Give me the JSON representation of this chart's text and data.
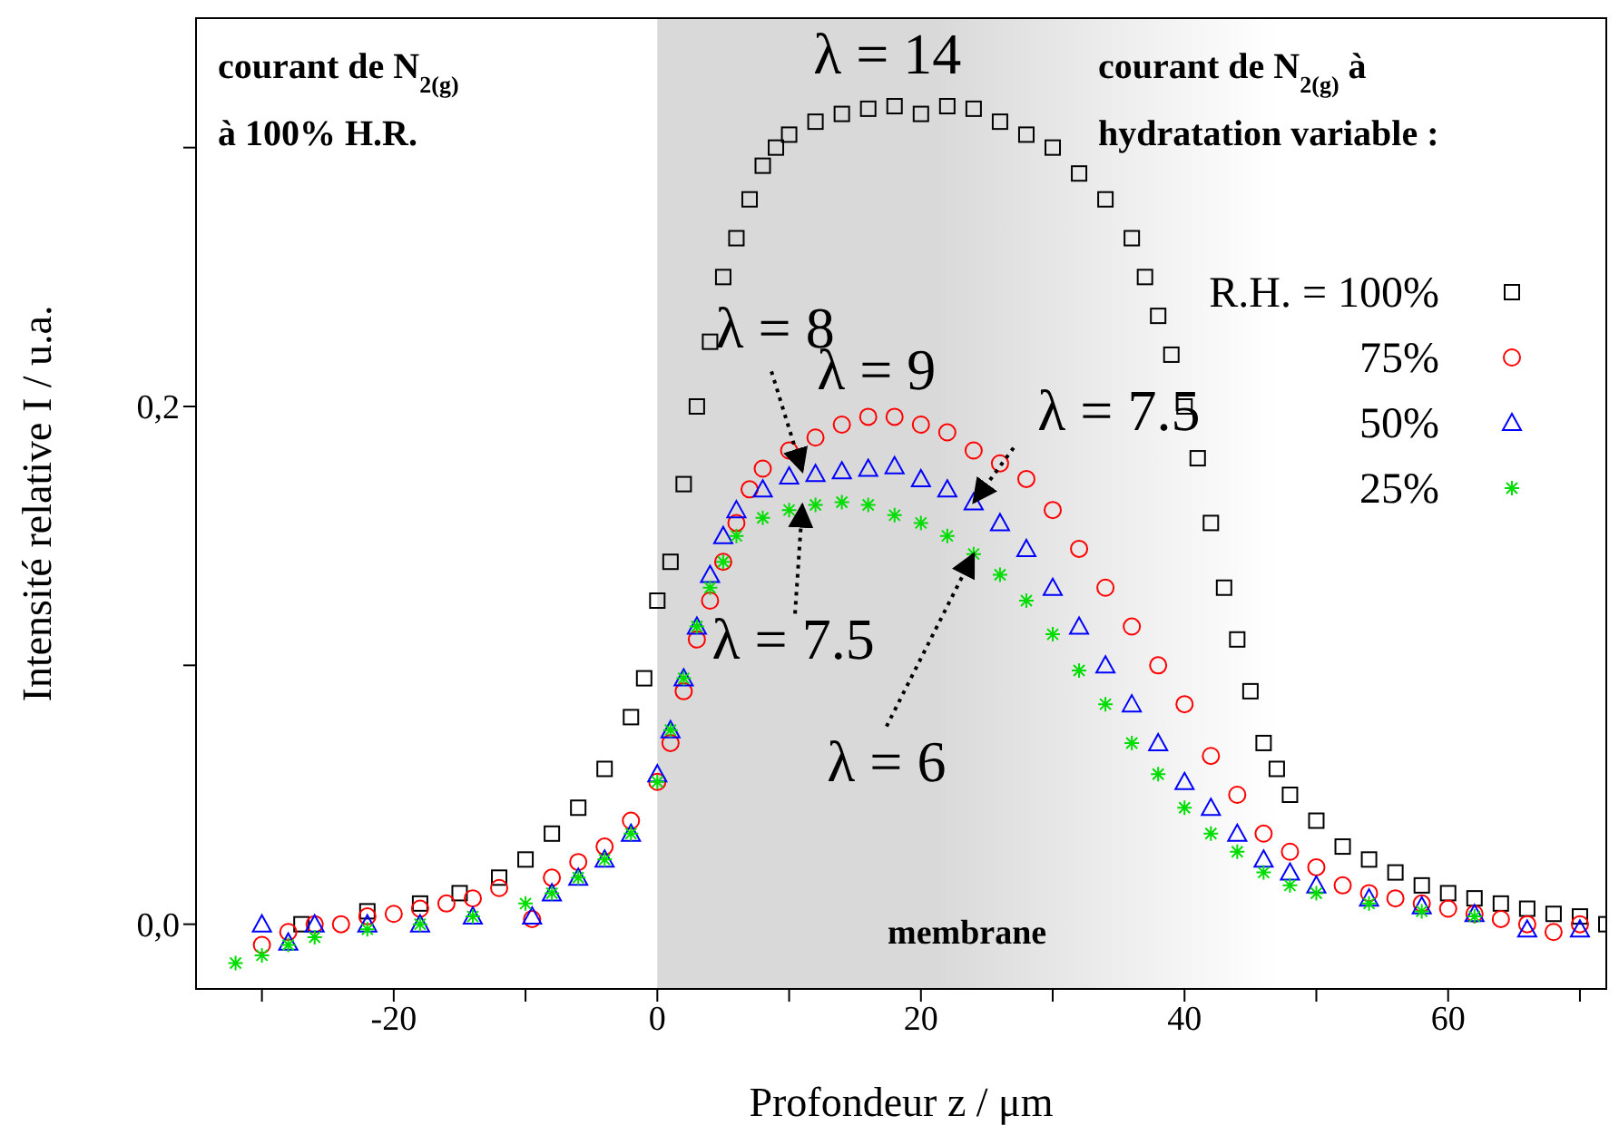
{
  "chart_data": {
    "type": "scatter",
    "xlabel": "Profondeur z / μm",
    "ylabel": "Intensité relative I / u.a.",
    "xlim": [
      -35,
      72
    ],
    "ylim": [
      -0.025,
      0.35
    ],
    "xticks": [
      {
        "value": -30,
        "label": null
      },
      -20,
      {
        "value": -10,
        "label": null
      },
      0,
      {
        "value": 10,
        "label": null
      },
      20,
      {
        "value": 30,
        "label": null
      },
      40,
      {
        "value": 50,
        "label": null
      },
      60,
      {
        "value": 70,
        "label": null
      }
    ],
    "yticks": [
      {
        "value": 0,
        "label": "0,0"
      },
      {
        "value": 0.1,
        "label": null
      },
      {
        "value": 0.2,
        "label": "0,2"
      },
      {
        "value": 0.3,
        "label": null
      }
    ],
    "legend": "top right",
    "bands": [
      {
        "axis": "x",
        "from": 0,
        "to": 47,
        "label": "membrane",
        "color": "#d9d9d9"
      }
    ],
    "series": [
      {
        "name": "R.H. = 100%",
        "color": "#000000",
        "marker": "square",
        "x": [
          -27,
          -22,
          -18,
          -15,
          -12,
          -10,
          -8,
          -6,
          -4,
          -2,
          -1,
          0,
          1,
          2,
          3,
          4,
          5,
          6,
          7,
          8,
          9,
          10,
          12,
          14,
          16,
          18,
          20,
          22,
          24,
          26,
          28,
          30,
          32,
          34,
          36,
          37,
          38,
          39,
          40,
          41,
          42,
          43,
          44,
          45,
          46,
          47,
          48,
          50,
          52,
          54,
          56,
          58,
          60,
          62,
          64,
          66,
          68,
          70,
          72
        ],
        "values": [
          0,
          0.005,
          0.008,
          0.012,
          0.018,
          0.025,
          0.035,
          0.045,
          0.06,
          0.08,
          0.095,
          0.125,
          0.14,
          0.17,
          0.2,
          0.225,
          0.25,
          0.265,
          0.28,
          0.293,
          0.3,
          0.305,
          0.31,
          0.313,
          0.315,
          0.316,
          0.313,
          0.316,
          0.315,
          0.31,
          0.305,
          0.3,
          0.29,
          0.28,
          0.265,
          0.25,
          0.235,
          0.22,
          0.2,
          0.18,
          0.155,
          0.13,
          0.11,
          0.09,
          0.07,
          0.06,
          0.05,
          0.04,
          0.03,
          0.025,
          0.02,
          0.015,
          0.012,
          0.01,
          0.008,
          0.006,
          0.004,
          0.003,
          0
        ]
      },
      {
        "name": "75%",
        "color": "#ff0000",
        "marker": "circle",
        "x": [
          -30,
          -28,
          -26,
          -24,
          -22,
          -20,
          -18,
          -16,
          -14,
          -12,
          -9.5,
          -8,
          -6,
          -4,
          -2,
          0,
          1,
          2,
          3,
          4,
          5,
          6,
          7,
          8,
          10,
          12,
          14,
          16,
          18,
          20,
          22,
          24,
          26,
          28,
          30,
          32,
          34,
          36,
          38,
          40,
          42,
          44,
          46,
          48,
          50,
          52,
          54,
          56,
          58,
          60,
          62,
          64,
          66,
          68,
          70
        ],
        "values": [
          -0.008,
          -0.003,
          0,
          0,
          0.003,
          0.004,
          0.006,
          0.008,
          0.01,
          0.014,
          0.002,
          0.018,
          0.024,
          0.03,
          0.04,
          0.055,
          0.07,
          0.09,
          0.11,
          0.125,
          0.14,
          0.155,
          0.168,
          0.176,
          0.183,
          0.188,
          0.193,
          0.196,
          0.196,
          0.193,
          0.19,
          0.183,
          0.178,
          0.172,
          0.16,
          0.145,
          0.13,
          0.115,
          0.1,
          0.085,
          0.065,
          0.05,
          0.035,
          0.028,
          0.022,
          0.015,
          0.012,
          0.01,
          0.008,
          0.006,
          0.004,
          0.002,
          0,
          -0.003,
          0
        ]
      },
      {
        "name": "50%",
        "color": "#0000ff",
        "marker": "triangle",
        "x": [
          -30,
          -28,
          -26,
          -22,
          -18,
          -14,
          -9.5,
          -8,
          -6,
          -4,
          -2,
          0,
          1,
          2,
          3,
          4,
          5,
          6,
          8,
          10,
          12,
          14,
          16,
          18,
          20,
          22,
          24,
          26,
          28,
          30,
          32,
          34,
          36,
          38,
          40,
          42,
          44,
          46,
          48,
          50,
          54,
          58,
          62,
          66,
          70
        ],
        "values": [
          0,
          -0.007,
          0,
          0,
          0,
          0.003,
          0.003,
          0.012,
          0.018,
          0.025,
          0.035,
          0.058,
          0.075,
          0.095,
          0.115,
          0.135,
          0.15,
          0.16,
          0.168,
          0.173,
          0.174,
          0.175,
          0.176,
          0.177,
          0.172,
          0.168,
          0.163,
          0.155,
          0.145,
          0.13,
          0.115,
          0.1,
          0.085,
          0.07,
          0.055,
          0.045,
          0.035,
          0.025,
          0.02,
          0.015,
          0.01,
          0.007,
          0.004,
          -0.002,
          -0.002
        ]
      },
      {
        "name": "25%",
        "color": "#00dd00",
        "marker": "cross",
        "x": [
          -32,
          -30,
          -28,
          -26,
          -22,
          -18,
          -14,
          -10,
          -8,
          -6,
          -4,
          -2,
          0,
          1,
          2,
          3,
          4,
          5,
          6,
          8,
          10,
          12,
          14,
          16,
          18,
          20,
          22,
          24,
          26,
          28,
          30,
          32,
          34,
          36,
          38,
          40,
          42,
          44,
          46,
          48,
          50,
          54,
          58,
          62
        ],
        "values": [
          -0.015,
          -0.012,
          -0.008,
          -0.005,
          -0.002,
          0,
          0.003,
          0.008,
          0.012,
          0.018,
          0.025,
          0.035,
          0.055,
          0.075,
          0.095,
          0.115,
          0.13,
          0.14,
          0.15,
          0.157,
          0.16,
          0.162,
          0.163,
          0.162,
          0.158,
          0.155,
          0.15,
          0.143,
          0.135,
          0.125,
          0.112,
          0.098,
          0.085,
          0.07,
          0.058,
          0.045,
          0.035,
          0.028,
          0.02,
          0.015,
          0.012,
          0.008,
          0.005,
          0.003
        ]
      }
    ],
    "annotations": [
      "courant de N$_{2(g)}$",
      "à 100% H.R.",
      "courant de N$_{2(g)}$ à",
      "hydratation variable :",
      {
        "text": "λ = 14",
        "x": 18,
        "y": 0.316
      },
      {
        "text": "λ = 8",
        "x": 11,
        "y": 0.175
      },
      {
        "text": "λ = 9",
        "x": 18,
        "y": 0.196
      },
      {
        "text": "λ = 7.5",
        "x": 24,
        "y": 0.163
      },
      {
        "text": "λ = 7.5",
        "x": 11,
        "y": 0.162
      },
      {
        "text": "λ = 6",
        "x": 24,
        "y": 0.143
      }
    ]
  }
}
